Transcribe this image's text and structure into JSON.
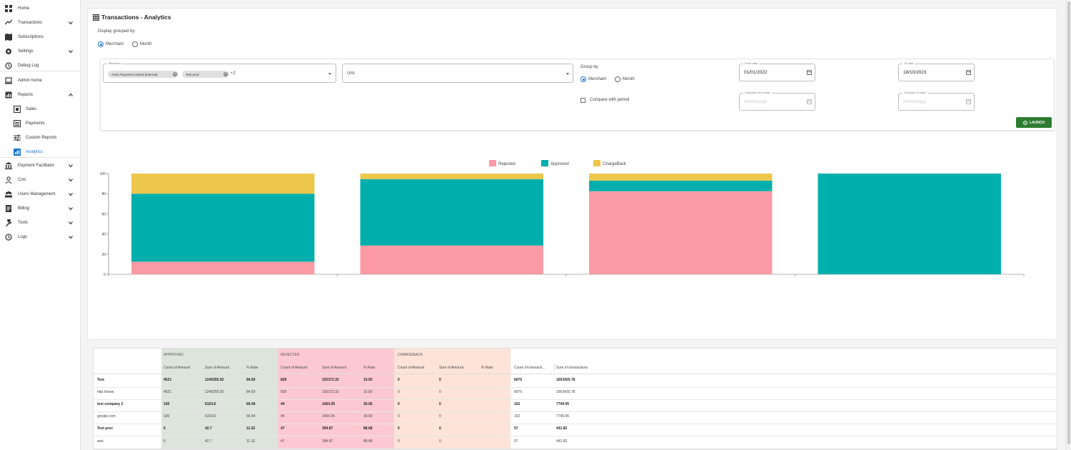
{
  "sidebar": {
    "items": [
      {
        "label": "Home",
        "icon": "grid-icon"
      },
      {
        "label": "Transactions",
        "icon": "transactions-icon"
      },
      {
        "label": "Subscriptions",
        "icon": "map-icon"
      },
      {
        "label": "Settings",
        "icon": "gear-icon"
      },
      {
        "label": "Debug Log",
        "icon": "history-icon"
      },
      {
        "label": "Admin home",
        "icon": "laptop-icon"
      },
      {
        "label": "Reports",
        "icon": "report-icon"
      },
      {
        "label": "Sales",
        "icon": "sales-icon"
      },
      {
        "label": "Payments",
        "icon": "list-icon"
      },
      {
        "label": "Custom Reports",
        "icon": "sliders-icon"
      },
      {
        "label": "Analytics",
        "icon": "analytics-icon"
      },
      {
        "label": "Payment Facilitator",
        "icon": "bank-icon"
      },
      {
        "label": "Crm",
        "icon": "person-icon"
      },
      {
        "label": "Users Management",
        "icon": "group-icon"
      },
      {
        "label": "Billing",
        "icon": "billing-icon"
      },
      {
        "label": "Tools",
        "icon": "wrench-icon"
      },
      {
        "label": "Logs",
        "icon": "history-icon"
      }
    ]
  },
  "page": {
    "title": "Transactions - Analytics",
    "grouped_label": "Display grouped by:",
    "group_options": [
      "Merchant",
      "Month"
    ],
    "group_selected": "Merchant"
  },
  "filters": {
    "merchant_legend": "Merchant",
    "merchant_chips": [
      "Areto Payment Limited (internal)",
      "Test prod"
    ],
    "merchant_more": "+2",
    "urls_placeholder": "Urls",
    "group_by_label": "Group by",
    "group_by_options": [
      "Merchant",
      "Month"
    ],
    "group_by_selected": "Merchant",
    "compare_label": "Compare with period",
    "from_date_legend": "From date",
    "from_date": "01/01/2022",
    "to_date_legend": "To date",
    "to_date": "18/10/2023",
    "compare_from_legend": "Compare From date",
    "compare_to_legend": "Compare To date",
    "date_placeholder": "dd/mm/yyyy",
    "launch_label": "LAUNCH"
  },
  "colors": {
    "rejected": "#fc9ba6",
    "approved": "#00afac",
    "chargeback": "#ecc74a",
    "approved_col_bg": "#dde4dc",
    "rejected_col_bg": "#fcc9d3",
    "chargeback_col_bg": "#fde3d8",
    "accent": "#1976d2",
    "launch": "#2e7d32"
  },
  "chart_data": {
    "type": "bar",
    "stacked": true,
    "categories": [
      "",
      "",
      "",
      ""
    ],
    "series": [
      {
        "name": "Rejected",
        "values": [
          12.5,
          28.5,
          82.5,
          0
        ]
      },
      {
        "name": "Approved",
        "values": [
          67.5,
          66,
          10.5,
          100
        ]
      },
      {
        "name": "ChargeBack",
        "values": [
          20,
          5.5,
          7,
          0
        ]
      }
    ],
    "ylim": [
      0,
      100
    ],
    "yticks": [
      "0",
      "20",
      "40",
      "60",
      "80",
      "100"
    ],
    "legend": "top-center"
  },
  "table": {
    "groups": [
      "APPROVED",
      "REJECTED",
      "CHARGEBACK"
    ],
    "subheaders": [
      "Count of Amount",
      "Sum of Amount",
      "% Rate",
      "Count of Amount",
      "Sum of Amount",
      "% Rate",
      "Count of Amount",
      "Sum of Amount",
      "% Rate",
      "Count of transacti...",
      "Sum of transactions"
    ],
    "rows": [
      {
        "name": "Test",
        "bold": true,
        "vals": [
          "4521",
          "1240255.92",
          "84.50",
          "829",
          "152373.32",
          "15.50",
          "0",
          "0",
          "",
          "6675",
          "1653420.78"
        ]
      },
      {
        "name": "http://www.",
        "bold": false,
        "vals": [
          "4521",
          "1240255.92",
          "84.50",
          "829",
          "152373.32",
          "15.50",
          "0",
          "0",
          "",
          "6675",
          "1653420.78"
        ]
      },
      {
        "name": "test company 2",
        "bold": true,
        "vals": [
          "100",
          "6103.6",
          "69.44",
          "44",
          "1454.35",
          "30.56",
          "0",
          "0",
          "",
          "152",
          "7749.95"
        ]
      },
      {
        "name": "google.com",
        "bold": false,
        "vals": [
          "100",
          "6103.6",
          "69.44",
          "44",
          "1454.35",
          "30.56",
          "0",
          "0",
          "",
          "152",
          "7749.95"
        ]
      },
      {
        "name": "Test proc",
        "bold": true,
        "vals": [
          "6",
          "42.7",
          "11.32",
          "47",
          "394.87",
          "88.68",
          "0",
          "0",
          "",
          "57",
          "441.82"
        ]
      },
      {
        "name": "aret.",
        "bold": false,
        "vals": [
          "6",
          "42.7",
          "11.32",
          "47",
          "394.87",
          "88.68",
          "0",
          "0",
          "",
          "57",
          "441.82"
        ]
      }
    ]
  }
}
